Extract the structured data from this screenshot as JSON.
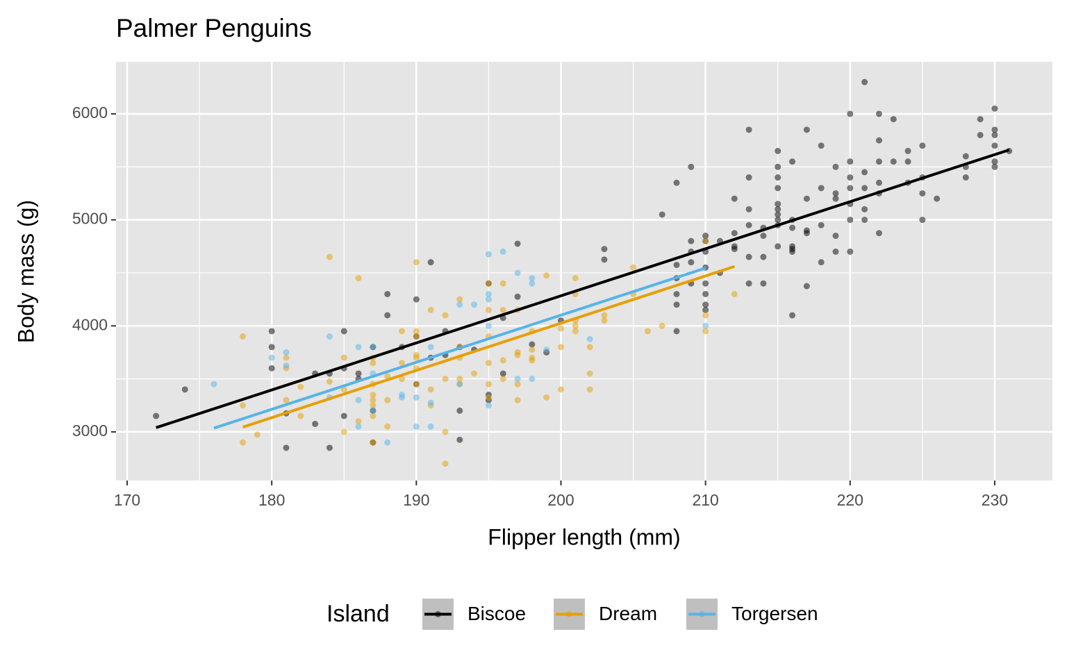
{
  "chart_data": {
    "type": "scatter",
    "title": "Palmer Penguins",
    "x_label": "Flipper length (mm)",
    "y_label": "Body mass (g)",
    "xlim": [
      169.23,
      233.99
    ],
    "ylim": [
      2541,
      6491
    ],
    "xticks": [
      170,
      180,
      190,
      200,
      210,
      220,
      230
    ],
    "yticks": [
      3000,
      4000,
      5000,
      6000
    ],
    "grid": true,
    "legend_title": "Island",
    "legend_position": "bottom",
    "series": [
      {
        "name": "Biscoe",
        "color": "#000000",
        "x": [
          172,
          174,
          180,
          180,
          180,
          181,
          181,
          183,
          183,
          184,
          184,
          185,
          185,
          185,
          186,
          186,
          187,
          187,
          187,
          188,
          188,
          189,
          190,
          190,
          190,
          191,
          191,
          192,
          192,
          193,
          193,
          193,
          194,
          195,
          195,
          195,
          196,
          196,
          197,
          197,
          198,
          199,
          200,
          203,
          203,
          207,
          208,
          208,
          208,
          208,
          208,
          208,
          209,
          209,
          209,
          209,
          209,
          210,
          210,
          210,
          210,
          210,
          210,
          210,
          210,
          211,
          211,
          212,
          212,
          212,
          212,
          213,
          213,
          213,
          213,
          213,
          213,
          214,
          214,
          214,
          214,
          215,
          215,
          215,
          215,
          215,
          215,
          215,
          215,
          215,
          215,
          216,
          216,
          216,
          216,
          216,
          216,
          216,
          217,
          217,
          217,
          217,
          217,
          218,
          218,
          218,
          218,
          219,
          219,
          219,
          219,
          219,
          220,
          220,
          220,
          220,
          220,
          220,
          220,
          221,
          221,
          221,
          221,
          221,
          222,
          222,
          222,
          222,
          222,
          222,
          223,
          223,
          224,
          224,
          224,
          225,
          225,
          225,
          225,
          226,
          228,
          228,
          228,
          229,
          229,
          230,
          230,
          230,
          230,
          230,
          230,
          231
        ],
        "values": [
          3150,
          3400,
          3950,
          3800,
          3600,
          2850,
          3175,
          3550,
          3075,
          2850,
          3550,
          3950,
          3600,
          3150,
          3550,
          3500,
          3800,
          3200,
          2900,
          4300,
          4100,
          3800,
          4250,
          3900,
          3450,
          4600,
          3700,
          3950,
          3725,
          3200,
          2925,
          3800,
          3775,
          4400,
          3350,
          3300,
          4075,
          3550,
          4775,
          4275,
          3825,
          3750,
          4050,
          4725,
          4625,
          5050,
          5350,
          4575,
          4450,
          4300,
          4200,
          3950,
          5500,
          4800,
          4700,
          4600,
          4400,
          4850,
          4800,
          4700,
          4550,
          4400,
          4300,
          4200,
          4150,
          4800,
          4500,
          5200,
          4875,
          4750,
          4725,
          5850,
          5400,
          5100,
          4950,
          4650,
          4400,
          4925,
          4850,
          4650,
          4400,
          5650,
          5500,
          5400,
          5300,
          5150,
          5100,
          5050,
          5000,
          4950,
          4750,
          5550,
          5000,
          4925,
          4750,
          4725,
          4700,
          4100,
          5850,
          5200,
          4900,
          4875,
          4375,
          5700,
          5300,
          4950,
          4600,
          5500,
          5250,
          5200,
          4850,
          4700,
          6000,
          5550,
          5400,
          5300,
          5150,
          5000,
          4700,
          6300,
          5450,
          5300,
          5100,
          5000,
          6000,
          5750,
          5550,
          5350,
          5250,
          4875,
          5950,
          5550,
          5650,
          5550,
          5350,
          5700,
          5400,
          5250,
          5000,
          5200,
          5600,
          5500,
          5400,
          5950,
          5800,
          6050,
          5850,
          5800,
          5700,
          5550,
          5500,
          5650
        ],
        "fit": {
          "x": [
            172,
            231
          ],
          "values": [
            3040,
            5660
          ]
        }
      },
      {
        "name": "Dream",
        "color": "#E69F00",
        "x": [
          178,
          178,
          178,
          179,
          181,
          181,
          181,
          182,
          182,
          184,
          184,
          185,
          185,
          185,
          186,
          186,
          187,
          187,
          187,
          187,
          187,
          187,
          187,
          187,
          188,
          188,
          188,
          189,
          189,
          189,
          190,
          190,
          190,
          190,
          190,
          190,
          190,
          191,
          191,
          191,
          192,
          192,
          192,
          192,
          193,
          193,
          193,
          193,
          193,
          194,
          195,
          195,
          195,
          195,
          195,
          195,
          196,
          196,
          196,
          196,
          197,
          197,
          197,
          197,
          197,
          198,
          198,
          198,
          198,
          199,
          199,
          200,
          200,
          200,
          201,
          201,
          201,
          201,
          201,
          202,
          202,
          202,
          203,
          203,
          205,
          205,
          206,
          207,
          210,
          210,
          210,
          212
        ],
        "values": [
          3900,
          3250,
          2900,
          2975,
          3700,
          3600,
          3300,
          3425,
          3150,
          4650,
          3475,
          3700,
          3400,
          3000,
          4450,
          3100,
          3700,
          3650,
          3450,
          3350,
          3300,
          3250,
          3150,
          2900,
          3525,
          3300,
          3050,
          3950,
          3650,
          3500,
          4600,
          3950,
          3900,
          3725,
          3700,
          3600,
          3450,
          4150,
          3400,
          3250,
          4100,
          3500,
          3000,
          2700,
          4250,
          3800,
          3700,
          3500,
          3450,
          3550,
          4400,
          4150,
          3900,
          3650,
          3450,
          3325,
          4400,
          4150,
          3675,
          3500,
          4150,
          3750,
          3725,
          3450,
          3300,
          3950,
          3775,
          3700,
          3675,
          4475,
          3325,
          3975,
          3800,
          3400,
          4450,
          4300,
          4050,
          4000,
          3950,
          3800,
          3550,
          3400,
          4100,
          4050,
          4550,
          4300,
          3950,
          4000,
          4800,
          4100,
          3950,
          4300
        ],
        "fit": {
          "x": [
            178,
            212
          ],
          "values": [
            3045,
            4560
          ]
        }
      },
      {
        "name": "Torgersen",
        "color": "#56B4E9",
        "x": [
          176,
          180,
          181,
          181,
          184,
          184,
          186,
          186,
          186,
          187,
          187,
          187,
          188,
          189,
          189,
          190,
          190,
          191,
          191,
          191,
          193,
          193,
          194,
          195,
          195,
          195,
          195,
          195,
          196,
          197,
          197,
          198,
          198,
          198,
          199,
          202,
          210
        ],
        "values": [
          3450,
          3700,
          3750,
          3625,
          3900,
          3325,
          3800,
          3300,
          3050,
          3800,
          3550,
          3200,
          2900,
          3350,
          3325,
          3325,
          3050,
          3800,
          3275,
          3050,
          4200,
          3450,
          4200,
          4675,
          4300,
          4250,
          4000,
          3250,
          4700,
          4500,
          3500,
          4450,
          4400,
          3500,
          3775,
          3875,
          4000
        ],
        "fit": {
          "x": [
            176,
            210
          ],
          "values": [
            3035,
            4545
          ]
        }
      }
    ]
  }
}
